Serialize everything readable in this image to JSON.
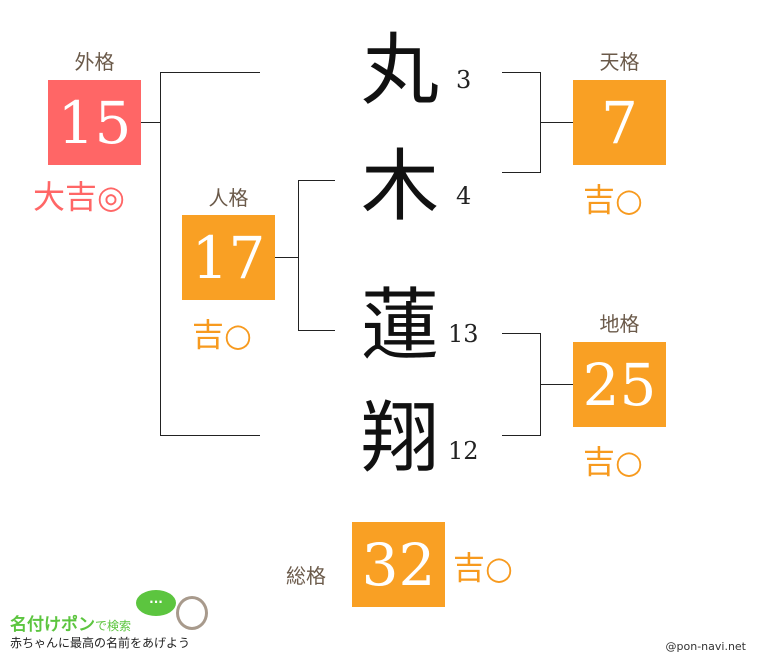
{
  "colors": {
    "great": "#FF6666",
    "good": "#F9A024",
    "label": "#6b5a4a"
  },
  "name": {
    "chars": [
      "丸",
      "木",
      "蓮",
      "翔"
    ],
    "strokes": [
      "3",
      "4",
      "13",
      "12"
    ]
  },
  "gaikaku": {
    "label": "外格",
    "value": "15",
    "rating": "大吉◎"
  },
  "jinkaku": {
    "label": "人格",
    "value": "17",
    "rating": "吉○"
  },
  "tenkaku": {
    "label": "天格",
    "value": "7",
    "rating": "吉○"
  },
  "chikaku": {
    "label": "地格",
    "value": "25",
    "rating": "吉○"
  },
  "soukaku": {
    "label": "総格",
    "value": "32",
    "rating": "吉○"
  },
  "logo": {
    "title": "名付けポン",
    "suffix": "で検索",
    "tagline": "赤ちゃんに最高の名前をあげよう",
    "bubble": "..."
  },
  "credit": "@pon-navi.net"
}
